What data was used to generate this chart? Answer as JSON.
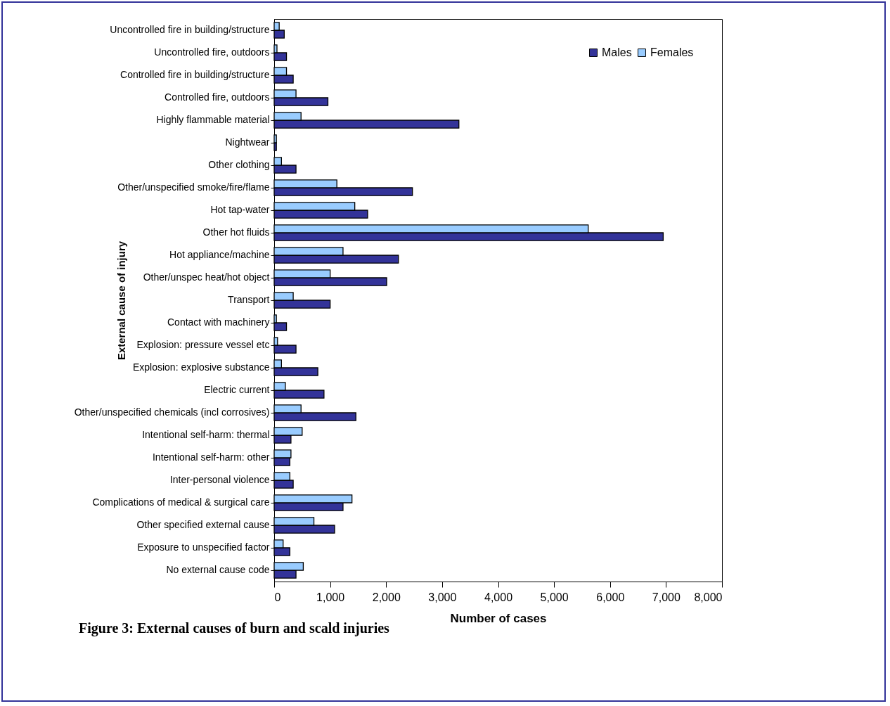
{
  "chart_data": {
    "type": "bar",
    "orientation": "horizontal",
    "title": "Figure 3: External causes of burn and scald injuries",
    "xlabel": "Number of cases",
    "ylabel": "External cause of injury",
    "categories": [
      "Uncontrolled fire in building/structure",
      "Uncontrolled fire, outdoors",
      "Controlled fire in building/structure",
      "Controlled fire, outdoors",
      "Highly flammable material",
      "Nightwear",
      "Other clothing",
      "Other/unspecified smoke/fire/flame",
      "Hot tap-water",
      "Other hot fluids",
      "Hot appliance/machine",
      "Other/unspec heat/hot object",
      "Transport",
      "Contact with machinery",
      "Explosion: pressure vessel etc",
      "Explosion: explosive substance",
      "Electric current",
      "Other/unspecified chemicals (incl corrosives)",
      "Intentional self-harm: thermal",
      "Intentional self-harm: other",
      "Inter-personal violence",
      "Complications of medical & surgical care",
      "Other specified external cause",
      "Exposure to unspecified factor",
      "No external cause code"
    ],
    "series": [
      {
        "name": "Males",
        "color": "#333399",
        "values": [
          180,
          220,
          340,
          960,
          3300,
          40,
          390,
          2470,
          1670,
          6950,
          2220,
          2010,
          1000,
          220,
          390,
          780,
          890,
          1460,
          300,
          280,
          340,
          1230,
          1080,
          280,
          390
        ]
      },
      {
        "name": "Females",
        "color": "#99ccff",
        "values": [
          90,
          50,
          220,
          390,
          480,
          40,
          130,
          1120,
          1440,
          5610,
          1230,
          1000,
          340,
          40,
          60,
          130,
          200,
          480,
          500,
          300,
          280,
          1390,
          710,
          160,
          520
        ]
      }
    ],
    "xlim": [
      0,
      8000
    ],
    "xticks": [
      0,
      {
        "value": 1000,
        "label": "1,000"
      },
      {
        "value": 2000,
        "label": "2,000"
      },
      {
        "value": 3000,
        "label": "3,000"
      },
      {
        "value": 4000,
        "label": "4,000"
      },
      {
        "value": 5000,
        "label": "5,000"
      },
      {
        "value": 6000,
        "label": "6,000"
      },
      {
        "value": 7000,
        "label": "7,000"
      },
      {
        "value": 8000,
        "label": "8,000"
      }
    ],
    "grid": false,
    "legend": "top right"
  }
}
